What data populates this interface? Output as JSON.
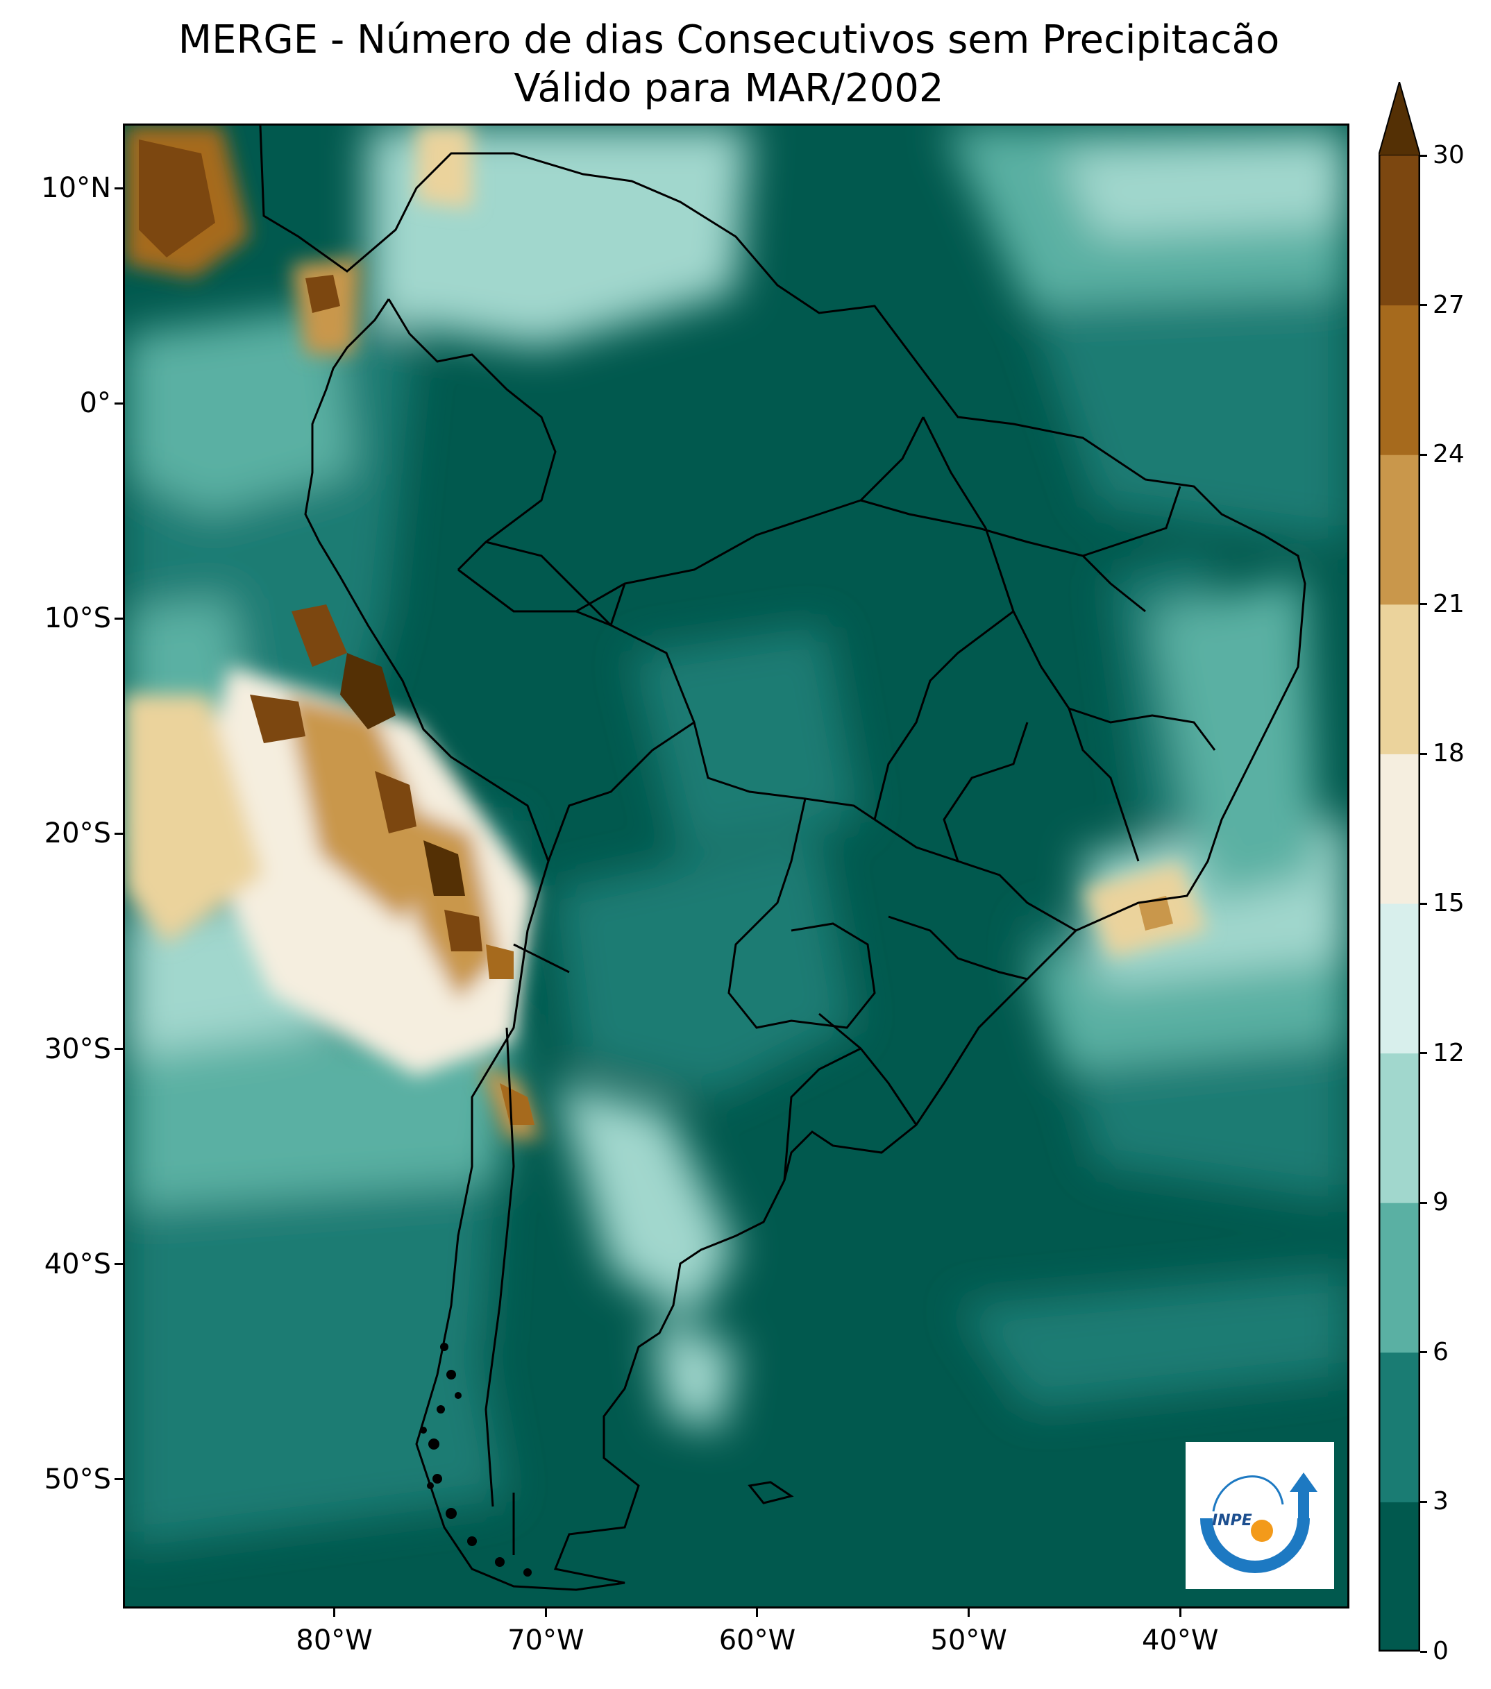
{
  "title": {
    "line1": "MERGE - Número de dias Consecutivos sem Precipitacão",
    "line2": "Válido para MAR/2002"
  },
  "map": {
    "lon_range": [
      -90,
      -32
    ],
    "lat_range": [
      -56,
      13
    ],
    "lat_ticks": [
      {
        "value": 10,
        "label": "10°N"
      },
      {
        "value": 0,
        "label": "0°"
      },
      {
        "value": -10,
        "label": "10°S"
      },
      {
        "value": -20,
        "label": "20°S"
      },
      {
        "value": -30,
        "label": "30°S"
      },
      {
        "value": -40,
        "label": "40°S"
      },
      {
        "value": -50,
        "label": "50°S"
      }
    ],
    "lon_ticks": [
      {
        "value": -80,
        "label": "80°W"
      },
      {
        "value": -70,
        "label": "70°W"
      },
      {
        "value": -60,
        "label": "60°W"
      },
      {
        "value": -50,
        "label": "50°W"
      },
      {
        "value": -40,
        "label": "40°W"
      }
    ]
  },
  "colorbar": {
    "levels": [
      0,
      3,
      6,
      9,
      12,
      15,
      18,
      21,
      24,
      27,
      30
    ],
    "labels": [
      "0",
      "3",
      "6",
      "9",
      "12",
      "15",
      "18",
      "21",
      "24",
      "27",
      "30"
    ],
    "colors": [
      "#01594e",
      "#1a7c73",
      "#5ab0a3",
      "#a1d7cd",
      "#d8efec",
      "#f5eedf",
      "#ebd39c",
      "#c9974b",
      "#a66a1d",
      "#7c4710"
    ],
    "extend_color": "#543005",
    "extend": "max"
  },
  "logo": {
    "text": "INPE",
    "ring_color": "#1d79c2",
    "dot_color": "#f39a1a"
  }
}
